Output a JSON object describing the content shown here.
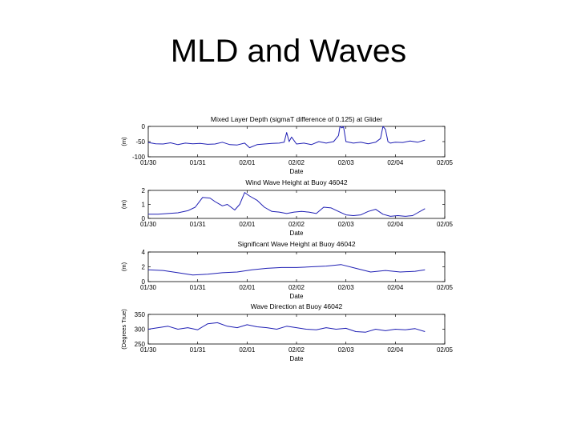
{
  "slide": {
    "title": "MLD and Waves"
  },
  "chart_data": [
    {
      "type": "line",
      "title": "Mixed Layer Depth (sigmaT difference of 0.125) at Glider",
      "xlabel": "Date",
      "ylabel": "(m)",
      "xticks": [
        "01/30",
        "01/31",
        "02/01",
        "02/02",
        "02/03",
        "02/04",
        "02/05"
      ],
      "yticks": [
        "0",
        "-50",
        "-100"
      ],
      "ylim": [
        -100,
        0
      ],
      "color": "#1f1fb4",
      "series": [
        {
          "x": [
            0.0,
            0.15,
            0.3,
            0.45,
            0.6,
            0.75,
            0.9,
            1.05,
            1.2,
            1.35,
            1.5,
            1.65,
            1.8,
            1.95,
            2.05,
            2.2,
            2.35,
            2.5,
            2.65,
            2.75,
            2.8,
            2.85,
            2.9,
            3.0,
            3.15,
            3.3,
            3.45,
            3.6,
            3.75,
            3.85,
            3.88,
            3.92,
            3.95,
            4.0,
            4.15,
            4.3,
            4.45,
            4.6,
            4.7,
            4.75,
            4.8,
            4.85,
            4.9,
            5.0,
            5.15,
            5.3,
            5.45,
            5.6
          ],
          "y": [
            -53,
            -57,
            -58,
            -54,
            -60,
            -55,
            -57,
            -56,
            -59,
            -58,
            -52,
            -60,
            -61,
            -55,
            -70,
            -60,
            -58,
            -56,
            -55,
            -52,
            -20,
            -50,
            -35,
            -58,
            -55,
            -60,
            -50,
            -55,
            -50,
            -30,
            0,
            -5,
            0,
            -50,
            -55,
            -52,
            -57,
            -52,
            -40,
            0,
            -10,
            -50,
            -55,
            -52,
            -53,
            -48,
            -52,
            -45
          ]
        }
      ]
    },
    {
      "type": "line",
      "title": "Wind Wave Height at Buoy 46042",
      "xlabel": "Date",
      "ylabel": "(m)",
      "xticks": [
        "01/30",
        "01/31",
        "02/01",
        "02/02",
        "02/03",
        "02/04",
        "02/05"
      ],
      "yticks": [
        "2",
        "1",
        "0"
      ],
      "ylim": [
        0,
        2
      ],
      "color": "#1f1fb4",
      "series": [
        {
          "x": [
            0.0,
            0.2,
            0.4,
            0.6,
            0.8,
            0.95,
            1.1,
            1.25,
            1.35,
            1.5,
            1.6,
            1.75,
            1.85,
            1.95,
            2.05,
            2.2,
            2.35,
            2.5,
            2.65,
            2.8,
            2.95,
            3.1,
            3.25,
            3.4,
            3.55,
            3.7,
            3.85,
            4.0,
            4.15,
            4.3,
            4.45,
            4.6,
            4.75,
            4.9,
            5.05,
            5.2,
            5.35,
            5.45,
            5.6
          ],
          "y": [
            0.3,
            0.3,
            0.35,
            0.4,
            0.55,
            0.8,
            1.5,
            1.45,
            1.2,
            0.9,
            1.0,
            0.6,
            1.0,
            1.85,
            1.6,
            1.3,
            0.8,
            0.5,
            0.45,
            0.35,
            0.45,
            0.5,
            0.45,
            0.35,
            0.8,
            0.75,
            0.5,
            0.25,
            0.2,
            0.25,
            0.5,
            0.65,
            0.3,
            0.15,
            0.2,
            0.15,
            0.2,
            0.4,
            0.7
          ]
        }
      ]
    },
    {
      "type": "line",
      "title": "Significant Wave Height at Buoy 46042",
      "xlabel": "Date",
      "ylabel": "(m)",
      "xticks": [
        "01/30",
        "01/31",
        "02/01",
        "02/02",
        "02/03",
        "02/04",
        "02/05"
      ],
      "yticks": [
        "4",
        "2",
        "0"
      ],
      "ylim": [
        0,
        4
      ],
      "color": "#1f1fb4",
      "series": [
        {
          "x": [
            0.0,
            0.3,
            0.6,
            0.9,
            1.2,
            1.5,
            1.8,
            2.1,
            2.4,
            2.7,
            3.0,
            3.3,
            3.6,
            3.9,
            4.2,
            4.5,
            4.8,
            5.1,
            5.4,
            5.6
          ],
          "y": [
            1.6,
            1.5,
            1.2,
            0.9,
            1.0,
            1.2,
            1.3,
            1.6,
            1.8,
            1.9,
            1.9,
            2.0,
            2.1,
            2.3,
            1.8,
            1.3,
            1.5,
            1.3,
            1.4,
            1.6
          ]
        }
      ]
    },
    {
      "type": "line",
      "title": "Wave Direction at Buoy 46042",
      "xlabel": "Date",
      "ylabel": "(Degrees True)",
      "xticks": [
        "01/30",
        "01/31",
        "02/01",
        "02/02",
        "02/03",
        "02/04",
        "02/05"
      ],
      "yticks": [
        "350",
        "300",
        "250"
      ],
      "ylim": [
        250,
        350
      ],
      "color": "#1f1fb4",
      "series": [
        {
          "x": [
            0.0,
            0.2,
            0.4,
            0.6,
            0.8,
            1.0,
            1.2,
            1.4,
            1.6,
            1.8,
            2.0,
            2.2,
            2.4,
            2.6,
            2.8,
            3.0,
            3.2,
            3.4,
            3.6,
            3.8,
            4.0,
            4.2,
            4.4,
            4.6,
            4.8,
            5.0,
            5.2,
            5.4,
            5.6
          ],
          "y": [
            300,
            305,
            310,
            300,
            305,
            298,
            318,
            322,
            310,
            305,
            315,
            308,
            305,
            300,
            310,
            305,
            300,
            298,
            305,
            300,
            303,
            292,
            290,
            300,
            295,
            300,
            298,
            302,
            292
          ]
        }
      ]
    }
  ]
}
